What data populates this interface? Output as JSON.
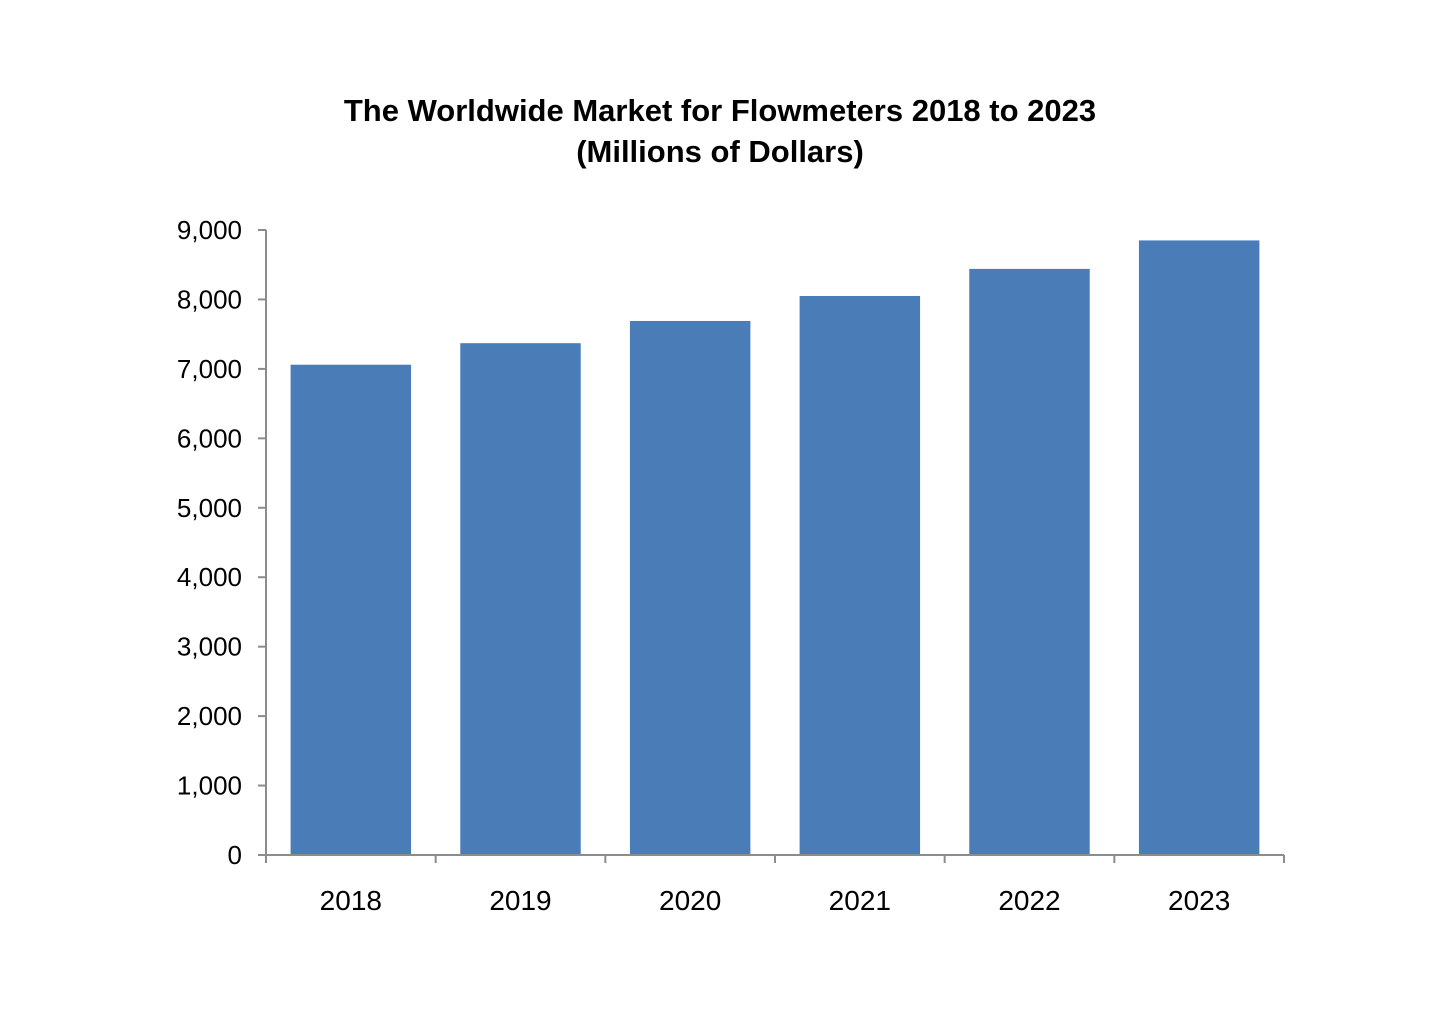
{
  "chart_data": {
    "type": "bar",
    "title": "The Worldwide Market for Flowmeters 2018 to 2023",
    "subtitle": "(Millions of Dollars)",
    "categories": [
      "2018",
      "2019",
      "2020",
      "2021",
      "2022",
      "2023"
    ],
    "values": [
      7060,
      7370,
      7690,
      8050,
      8440,
      8850
    ],
    "ylim": [
      0,
      9000
    ],
    "yticks": [
      0,
      1000,
      2000,
      3000,
      4000,
      5000,
      6000,
      7000,
      8000,
      9000
    ],
    "ytick_labels": [
      "0",
      "1,000",
      "2,000",
      "3,000",
      "4,000",
      "5,000",
      "6,000",
      "7,000",
      "8,000",
      "9,000"
    ],
    "xlabel": "",
    "ylabel": "",
    "grid": false,
    "legend": "none",
    "bar_color": "#4a7db8",
    "axis_color": "#8c8c8c"
  }
}
